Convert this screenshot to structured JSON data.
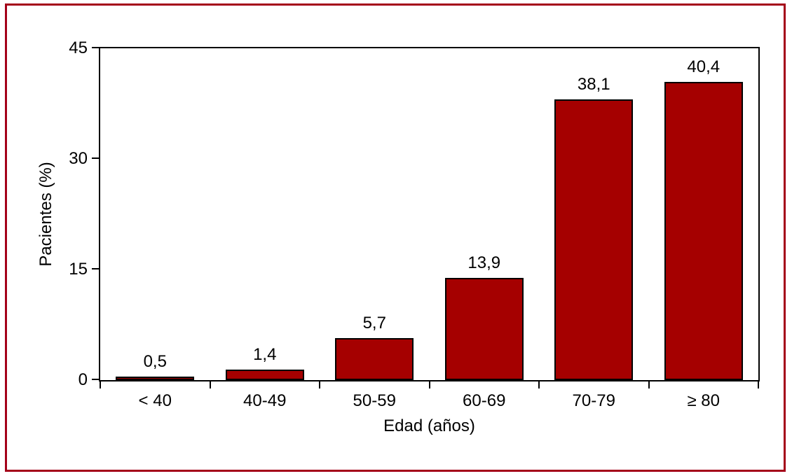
{
  "figure": {
    "background_color": "#ffffff",
    "frame_color": "#a40019"
  },
  "chart_data": {
    "type": "bar",
    "title": "",
    "categories": [
      "< 40",
      "40-49",
      "50-59",
      "60-69",
      "70-79",
      "≥ 80"
    ],
    "values": [
      0.5,
      1.4,
      5.7,
      13.9,
      38.1,
      40.4
    ],
    "value_labels": [
      "0,5",
      "1,4",
      "5,7",
      "13,9",
      "38,1",
      "40,4"
    ],
    "xlabel": "Edad (años)",
    "ylabel": "Pacientes (%)",
    "ylim": [
      0,
      45
    ],
    "yticks": [
      0,
      15,
      30,
      45
    ],
    "ytick_labels": [
      "0",
      "15",
      "30",
      "45"
    ],
    "grid": false,
    "legend": null,
    "bar_color": "#a50000",
    "bar_border_color": "#000000",
    "axis_color": "#000000"
  }
}
